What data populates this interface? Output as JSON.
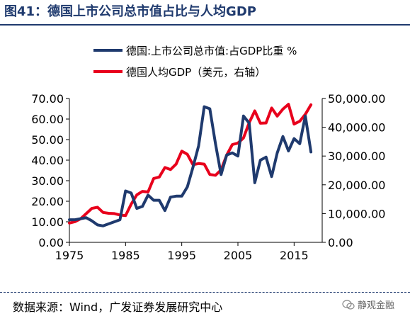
{
  "header": {
    "title": "图41：德国上市公司总市值占比与人均GDP"
  },
  "footer": {
    "source": "数据来源：Wind，广发证券发展研究中心",
    "watermark": "静观金融"
  },
  "chart_data": {
    "type": "line",
    "title": "",
    "xlabel": "",
    "ylabel_left": "",
    "ylabel_right": "",
    "x_ticks": [
      "1975",
      "1985",
      "1995",
      "2005",
      "2015"
    ],
    "y_left_ticks": [
      "0.00",
      "10.00",
      "20.00",
      "30.00",
      "40.00",
      "50.00",
      "60.00",
      "70.00"
    ],
    "y_right_ticks": [
      "0.00",
      "10,000.00",
      "20,000.00",
      "30,000.00",
      "40,000.00",
      "50,000.00"
    ],
    "xlim": [
      1975,
      2020
    ],
    "ylim_left": [
      0,
      70
    ],
    "ylim_right": [
      0,
      50000
    ],
    "legend_position": "top",
    "grid": false,
    "series": [
      {
        "name": "德国:上市公司总市值:占GDP比重 %",
        "axis": "left",
        "color": "#1f3a6e",
        "x": [
          1975,
          1976,
          1977,
          1978,
          1979,
          1980,
          1981,
          1982,
          1983,
          1984,
          1985,
          1986,
          1987,
          1988,
          1989,
          1990,
          1991,
          1992,
          1993,
          1994,
          1995,
          1996,
          1997,
          1998,
          1999,
          2000,
          2001,
          2002,
          2003,
          2004,
          2005,
          2006,
          2007,
          2008,
          2009,
          2010,
          2011,
          2012,
          2013,
          2014,
          2015,
          2016,
          2017,
          2018
        ],
        "values": [
          11.0,
          11.0,
          11.5,
          12.0,
          10.5,
          8.5,
          8.0,
          9.0,
          10.0,
          11.0,
          25.0,
          24.0,
          16.5,
          17.5,
          23.0,
          20.5,
          20.5,
          15.5,
          22.0,
          22.5,
          22.5,
          27.0,
          36.5,
          47.0,
          66.0,
          65.0,
          48.0,
          33.0,
          42.5,
          43.5,
          42.0,
          61.5,
          58.0,
          29.0,
          40.0,
          41.5,
          32.0,
          43.5,
          51.5,
          44.5,
          50.5,
          48.0,
          61.5,
          44.0
        ]
      },
      {
        "name": "德国人均GDP（美元，右轴）",
        "axis": "right",
        "color": "#e8001c",
        "x": [
          1975,
          1976,
          1977,
          1978,
          1979,
          1980,
          1981,
          1982,
          1983,
          1984,
          1985,
          1986,
          1987,
          1988,
          1989,
          1990,
          1991,
          1992,
          1993,
          1994,
          1995,
          1996,
          1997,
          1998,
          1999,
          2000,
          2001,
          2002,
          2003,
          2004,
          2005,
          2006,
          2007,
          2008,
          2009,
          2010,
          2011,
          2012,
          2013,
          2014,
          2015,
          2016,
          2017,
          2018
        ],
        "values": [
          6700,
          7200,
          8200,
          10000,
          11800,
          12200,
          10400,
          10100,
          10000,
          9500,
          9300,
          13300,
          16500,
          17700,
          17500,
          22200,
          22700,
          26000,
          25300,
          27200,
          31700,
          30600,
          27000,
          27400,
          27200,
          23600,
          23300,
          25200,
          30300,
          34000,
          34500,
          36300,
          41600,
          45700,
          41400,
          41500,
          46700,
          43900,
          46300,
          48000,
          41100,
          42100,
          44500,
          47800
        ]
      }
    ]
  }
}
